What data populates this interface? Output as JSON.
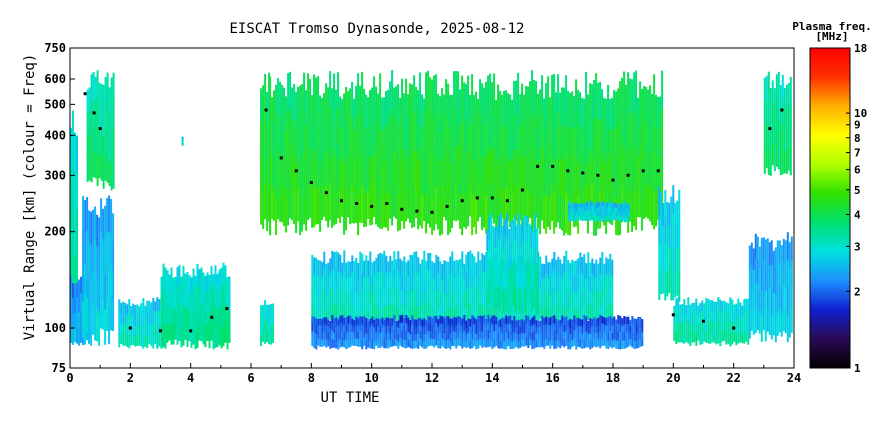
{
  "chart_data": {
    "type": "heatmap",
    "title": "EISCAT Tromso Dynasonde, 2025-08-12",
    "xlabel": "UT TIME",
    "ylabel": "Virtual Range [km] (colour = Freq)",
    "x_ticks": [
      "0",
      "2",
      "4",
      "6",
      "8",
      "10",
      "12",
      "14",
      "16",
      "18",
      "20",
      "22",
      "24"
    ],
    "xlim": [
      0,
      24
    ],
    "y_scale": "log",
    "ylim": [
      75,
      750
    ],
    "y_ticks": [
      {
        "value": 75,
        "label": "75"
      },
      {
        "value": 100,
        "label": "100"
      },
      {
        "value": 200,
        "label": "200"
      },
      {
        "value": 300,
        "label": "300"
      },
      {
        "value": 400,
        "label": "400"
      },
      {
        "value": 500,
        "label": "500"
      },
      {
        "value": 600,
        "label": "600"
      },
      {
        "value": 750,
        "label": "750"
      }
    ],
    "colorbar": {
      "title_line1": "Plasma freq.",
      "title_line2": "[MHz]",
      "scale": "log",
      "range": [
        1,
        18
      ],
      "ticks": [
        {
          "value": 1,
          "label": "1"
        },
        {
          "value": 2,
          "label": "2"
        },
        {
          "value": 3,
          "label": "3"
        },
        {
          "value": 4,
          "label": "4"
        },
        {
          "value": 5,
          "label": "5"
        },
        {
          "value": 6,
          "label": "6"
        },
        {
          "value": 7,
          "label": "7"
        },
        {
          "value": 8,
          "label": "8"
        },
        {
          "value": 9,
          "label": "9"
        },
        {
          "value": 10,
          "label": "10"
        },
        {
          "value": 18,
          "label": "18"
        }
      ],
      "stops": [
        "#000000",
        "#2a0a55",
        "#1020d0",
        "#1e90ff",
        "#00e0e0",
        "#00e070",
        "#30e000",
        "#b0ff00",
        "#ffff00",
        "#ffb000",
        "#ff3000",
        "#ff0000"
      ]
    },
    "echo_regions": [
      {
        "t_start": 0.0,
        "t_end": 0.2,
        "r_low": 120,
        "r_high": 500,
        "freq": 3.2
      },
      {
        "t_start": 0.0,
        "t_end": 0.6,
        "r_low": 88,
        "r_high": 150,
        "freq": 2.4
      },
      {
        "t_start": 0.55,
        "t_end": 1.45,
        "r_low": 270,
        "r_high": 640,
        "freq": 3.6
      },
      {
        "t_start": 0.4,
        "t_end": 1.45,
        "r_low": 88,
        "r_high": 270,
        "freq": 2.6
      },
      {
        "t_start": 1.6,
        "t_end": 3.0,
        "r_low": 86,
        "r_high": 125,
        "freq": 3.0
      },
      {
        "t_start": 3.0,
        "t_end": 5.3,
        "r_low": 86,
        "r_high": 160,
        "freq": 3.3
      },
      {
        "t_start": 3.7,
        "t_end": 3.75,
        "r_low": 370,
        "r_high": 400,
        "freq": 3.0
      },
      {
        "t_start": 6.3,
        "t_end": 6.6,
        "r_low": 200,
        "r_high": 640,
        "freq": 4.3
      },
      {
        "t_start": 6.3,
        "t_end": 6.7,
        "r_low": 88,
        "r_high": 125,
        "freq": 3.2
      },
      {
        "t_start": 6.6,
        "t_end": 19.6,
        "r_low": 195,
        "r_high": 640,
        "freq": 4.4
      },
      {
        "t_start": 8.0,
        "t_end": 18.0,
        "r_low": 100,
        "r_high": 175,
        "freq": 3.0
      },
      {
        "t_start": 8.0,
        "t_end": 19.0,
        "r_low": 86,
        "r_high": 110,
        "freq": 2.1
      },
      {
        "t_start": 13.8,
        "t_end": 15.5,
        "r_low": 110,
        "r_high": 230,
        "freq": 3.1
      },
      {
        "t_start": 16.5,
        "t_end": 18.5,
        "r_low": 215,
        "r_high": 250,
        "freq": 2.8
      },
      {
        "t_start": 19.5,
        "t_end": 20.2,
        "r_low": 120,
        "r_high": 280,
        "freq": 3.0
      },
      {
        "t_start": 20.0,
        "t_end": 22.5,
        "r_low": 88,
        "r_high": 125,
        "freq": 3.2
      },
      {
        "t_start": 22.5,
        "t_end": 23.9,
        "r_low": 90,
        "r_high": 200,
        "freq": 2.6
      },
      {
        "t_start": 23.0,
        "t_end": 23.9,
        "r_low": 300,
        "r_high": 640,
        "freq": 3.6
      }
    ],
    "peak_trace": [
      {
        "t": 0.5,
        "r": 540
      },
      {
        "t": 0.8,
        "r": 470
      },
      {
        "t": 1.0,
        "r": 420
      },
      {
        "t": 2.0,
        "r": 100
      },
      {
        "t": 3.0,
        "r": 98
      },
      {
        "t": 4.0,
        "r": 98
      },
      {
        "t": 4.7,
        "r": 108
      },
      {
        "t": 5.2,
        "r": 115
      },
      {
        "t": 6.5,
        "r": 480
      },
      {
        "t": 7.0,
        "r": 340
      },
      {
        "t": 7.5,
        "r": 310
      },
      {
        "t": 8.0,
        "r": 285
      },
      {
        "t": 8.5,
        "r": 265
      },
      {
        "t": 9.0,
        "r": 250
      },
      {
        "t": 9.5,
        "r": 245
      },
      {
        "t": 10.0,
        "r": 240
      },
      {
        "t": 10.5,
        "r": 245
      },
      {
        "t": 11.0,
        "r": 235
      },
      {
        "t": 11.5,
        "r": 232
      },
      {
        "t": 12.0,
        "r": 230
      },
      {
        "t": 12.5,
        "r": 240
      },
      {
        "t": 13.0,
        "r": 250
      },
      {
        "t": 13.5,
        "r": 255
      },
      {
        "t": 14.0,
        "r": 255
      },
      {
        "t": 14.5,
        "r": 250
      },
      {
        "t": 15.0,
        "r": 270
      },
      {
        "t": 15.5,
        "r": 320
      },
      {
        "t": 16.0,
        "r": 320
      },
      {
        "t": 16.5,
        "r": 310
      },
      {
        "t": 17.0,
        "r": 305
      },
      {
        "t": 17.5,
        "r": 300
      },
      {
        "t": 18.0,
        "r": 290
      },
      {
        "t": 18.5,
        "r": 300
      },
      {
        "t": 19.0,
        "r": 310
      },
      {
        "t": 19.5,
        "r": 310
      },
      {
        "t": 20.0,
        "r": 110
      },
      {
        "t": 21.0,
        "r": 105
      },
      {
        "t": 22.0,
        "r": 100
      },
      {
        "t": 23.2,
        "r": 420
      },
      {
        "t": 23.6,
        "r": 480
      }
    ]
  }
}
